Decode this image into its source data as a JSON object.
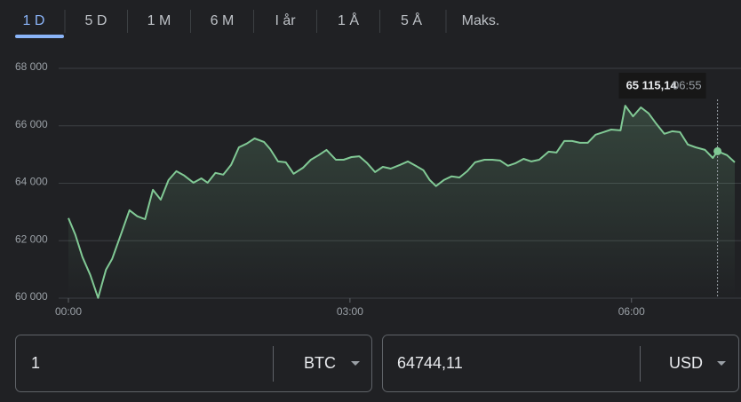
{
  "tabs": [
    "1 D",
    "5 D",
    "1 M",
    "6 M",
    "I år",
    "1 Å",
    "5 Å",
    "Maks."
  ],
  "selected_tab": 0,
  "chart_data": {
    "type": "line",
    "x": [
      0,
      4.5,
      9,
      14,
      19,
      24,
      28,
      34,
      39,
      44,
      49,
      54,
      59,
      64,
      69,
      74,
      80,
      85,
      89,
      94,
      99,
      104,
      109,
      114,
      119,
      125,
      129,
      134,
      139,
      144,
      150,
      155,
      160,
      165,
      171,
      176,
      181,
      186,
      191,
      196,
      201,
      206,
      212,
      217,
      222,
      227,
      231,
      235,
      240,
      245,
      250,
      255,
      260,
      266,
      271,
      276,
      281,
      286,
      291,
      296,
      301,
      307,
      312,
      317,
      322,
      327,
      332,
      337,
      342,
      347,
      353,
      356,
      361,
      366,
      371,
      376,
      381,
      386,
      391,
      396,
      401,
      407,
      412,
      415,
      421,
      426
    ],
    "values": [
      62790,
      62200,
      61430,
      60810,
      60010,
      60990,
      61370,
      62290,
      63060,
      62850,
      62750,
      63770,
      63430,
      64110,
      64420,
      64270,
      64020,
      64170,
      64020,
      64360,
      64300,
      64640,
      65250,
      65380,
      65560,
      65440,
      65190,
      64760,
      64730,
      64330,
      64540,
      64820,
      64980,
      65160,
      64820,
      64820,
      64910,
      64940,
      64700,
      64390,
      64570,
      64510,
      64640,
      64760,
      64610,
      64450,
      64110,
      63900,
      64110,
      64240,
      64200,
      64420,
      64730,
      64820,
      64820,
      64790,
      64610,
      64700,
      64850,
      64760,
      64820,
      65100,
      65070,
      65470,
      65470,
      65410,
      65410,
      65690,
      65780,
      65870,
      65840,
      66700,
      66330,
      66640,
      66430,
      66060,
      65720,
      65810,
      65780,
      65350,
      65250,
      65160,
      64880,
      65115.14,
      64980,
      64730
    ],
    "color": "#81c995",
    "xlim": [
      0,
      430
    ],
    "xticks": [
      {
        "value": 0,
        "label": "00:00"
      },
      {
        "value": 180,
        "label": "03:00"
      },
      {
        "value": 360,
        "label": "06:00"
      }
    ],
    "ylim": [
      60000,
      68000
    ],
    "yticks": [
      {
        "value": 60000,
        "label": "60 000"
      },
      {
        "value": 62000,
        "label": "62 000"
      },
      {
        "value": 64000,
        "label": "64 000"
      },
      {
        "value": 66000,
        "label": "66 000"
      },
      {
        "value": 68000,
        "label": "68 000"
      }
    ],
    "grid": true,
    "tooltip": {
      "x": 415,
      "value": 65115.14,
      "label": "65 115,14",
      "time": "06:55"
    }
  },
  "converter": {
    "from": {
      "amount": "1",
      "currency": "BTC"
    },
    "to": {
      "amount": "64744,11",
      "currency": "USD"
    }
  }
}
